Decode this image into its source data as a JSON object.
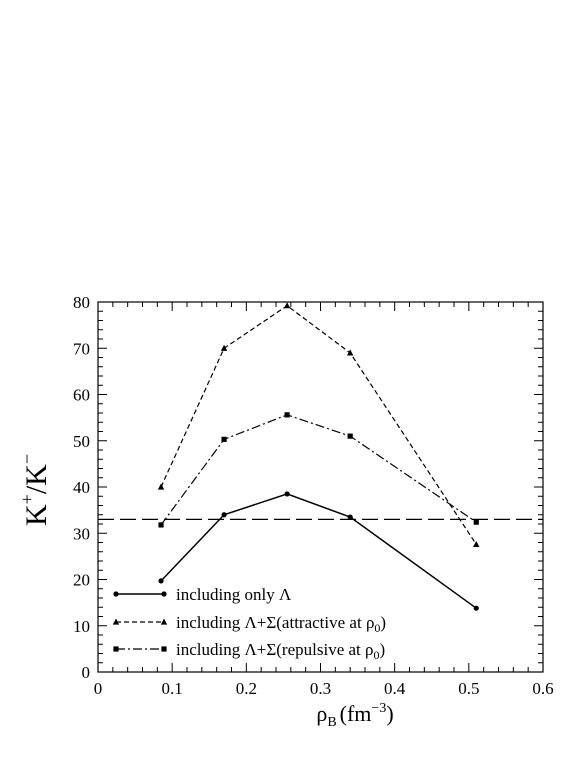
{
  "chart_data": {
    "type": "line",
    "xlabel": {
      "main": "ρ",
      "sub": "B",
      "unit_pre": "(fm",
      "unit_sup": "−3",
      "unit_post": ")"
    },
    "ylabel": {
      "base": "K",
      "sup1": "+",
      "mid": "/K",
      "sup2": "−"
    },
    "xlim": [
      0,
      0.6
    ],
    "ylim": [
      0,
      80
    ],
    "xticks": [
      "0",
      "0.1",
      "0.2",
      "0.3",
      "0.4",
      "0.5",
      "0.6"
    ],
    "yticks": [
      "0",
      "10",
      "20",
      "30",
      "40",
      "50",
      "60",
      "70",
      "80"
    ],
    "grid": false,
    "legend_position": "bottom-left",
    "reference_line": {
      "y": 33,
      "style": "long-dash"
    },
    "series": [
      {
        "name_parts": [
          "including only Λ"
        ],
        "style": "solid",
        "marker": "circle",
        "x": [
          0.085,
          0.17,
          0.255,
          0.34,
          0.51
        ],
        "y": [
          19.7,
          34,
          38.5,
          33.5,
          13.8
        ]
      },
      {
        "name_parts": [
          "including Λ+Σ(attractive at ρ",
          "0",
          ")"
        ],
        "style": "dashed",
        "marker": "triangle",
        "x": [
          0.085,
          0.17,
          0.255,
          0.34,
          0.51
        ],
        "y": [
          40,
          70,
          79.2,
          69,
          27.6
        ]
      },
      {
        "name_parts": [
          "including Λ+Σ(repulsive at ρ",
          "0",
          ")"
        ],
        "style": "dash-dot",
        "marker": "square",
        "x": [
          0.085,
          0.17,
          0.255,
          0.34,
          0.51
        ],
        "y": [
          31.8,
          50.3,
          55.6,
          51,
          32.4
        ]
      }
    ]
  }
}
